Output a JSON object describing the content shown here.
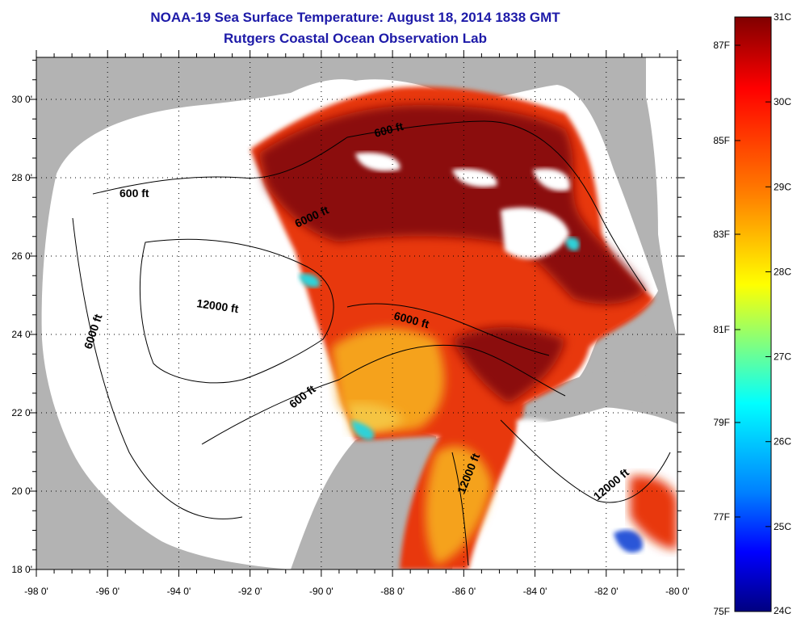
{
  "title": {
    "line1": "NOAA-19 Sea Surface Temperature:  August 18, 2014 1838 GMT",
    "line2": "Rutgers Coastal Ocean Observation Lab"
  },
  "map": {
    "lon_ticks": [
      "-98 0'",
      "-96 0'",
      "-94 0'",
      "-92 0'",
      "-90 0'",
      "-88 0'",
      "-86 0'",
      "-84 0'",
      "-82 0'",
      "-80 0'"
    ],
    "lat_ticks": [
      "30 0'",
      "28 0'",
      "26 0'",
      "24 0'",
      "22 0'",
      "20 0'",
      "18 0'"
    ],
    "contour_labels": [
      "600 ft",
      "6000 ft",
      "12000 ft",
      "6000 ft",
      "600 ft",
      "600 ft",
      "6000 ft",
      "12000 ft",
      "12000 ft"
    ]
  },
  "colorbar": {
    "celsius": [
      "31C",
      "30C",
      "29C",
      "28C",
      "27C",
      "26C",
      "25C",
      "24C"
    ],
    "fahrenheit": [
      "87F",
      "85F",
      "83F",
      "81F",
      "79F",
      "77F",
      "75F"
    ]
  },
  "colors": {
    "title": "#1d1aa8",
    "land": "#b3b3b3",
    "hot": "#8b0a0a",
    "warm": "#e8380e",
    "mild": "#f5a21c",
    "cool": "#2fd2d8"
  }
}
